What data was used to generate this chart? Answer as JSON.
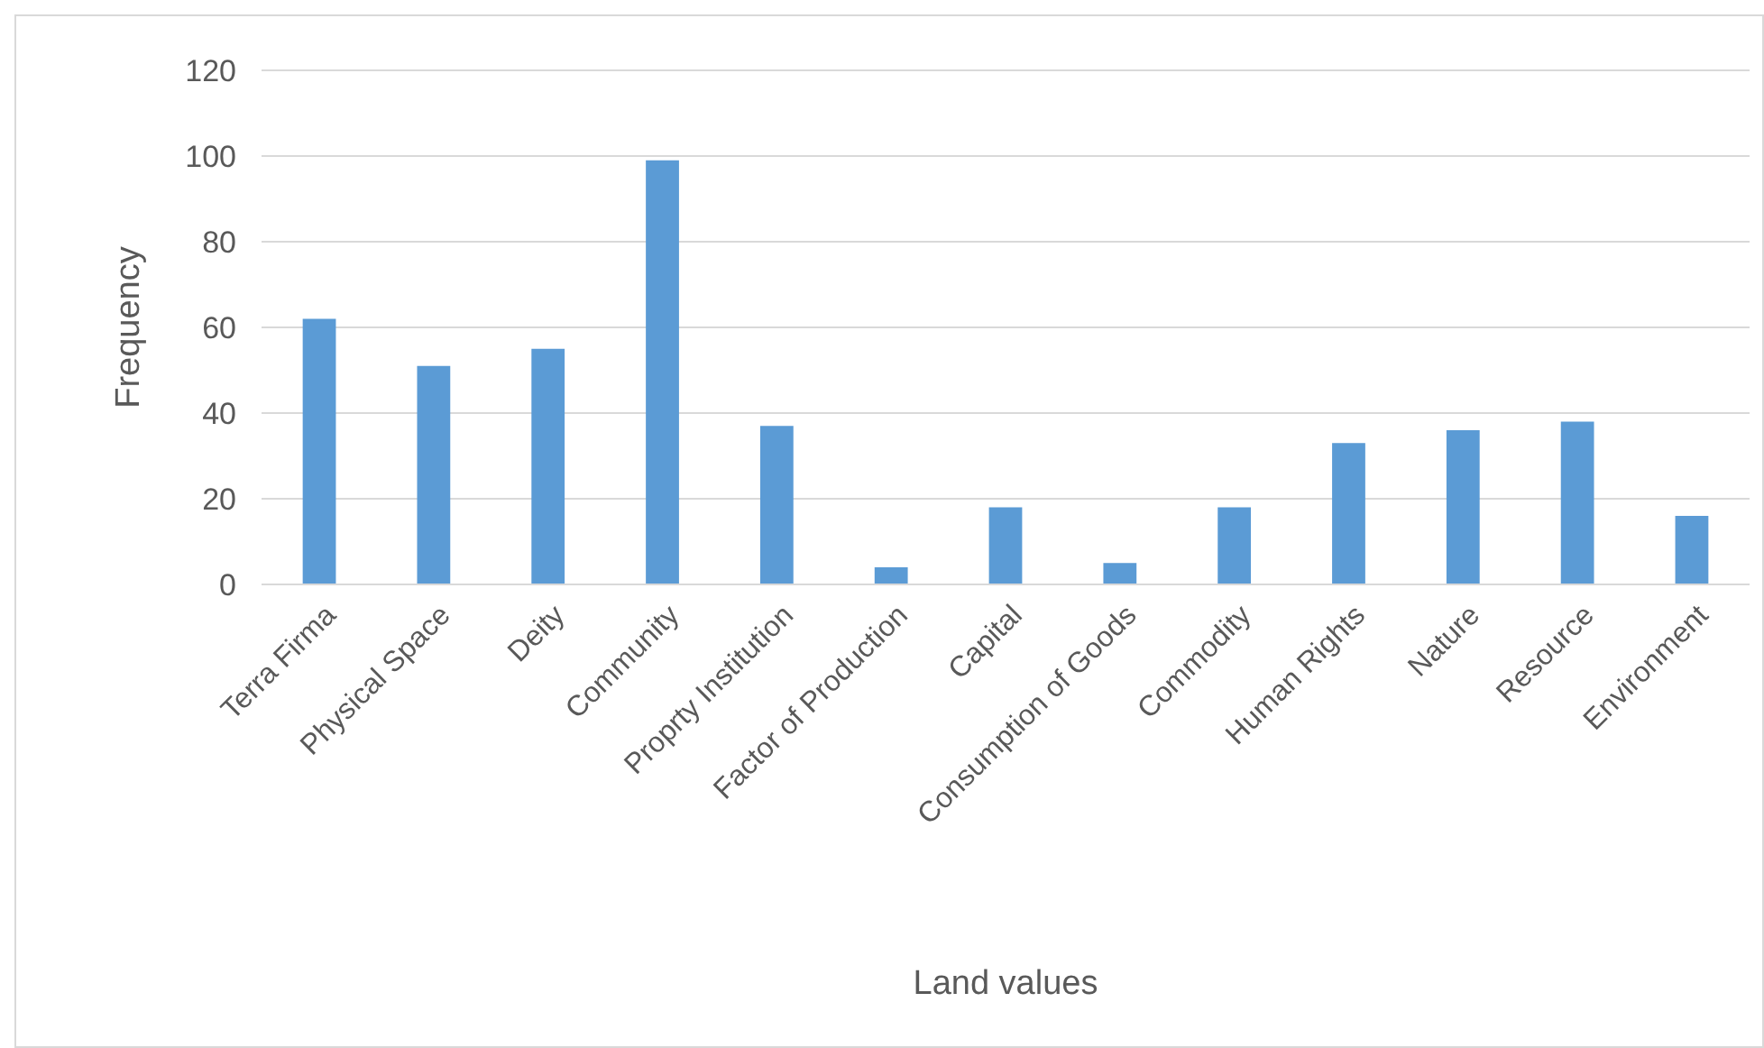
{
  "chart_data": {
    "type": "bar",
    "xlabel": "Land values",
    "ylabel": "Frequency",
    "categories": [
      "Terra Firma",
      "Physical Space",
      "Deity",
      "Community",
      "Proprty Institution",
      "Factor of Production",
      "Capital",
      "Consumption of Goods",
      "Commodity",
      "Human Rights",
      "Nature",
      "Resource",
      "Environment"
    ],
    "values": [
      62,
      51,
      55,
      99,
      37,
      4,
      18,
      5,
      18,
      33,
      36,
      38,
      16
    ],
    "color": "#5b9bd5",
    "ylim": [
      0,
      120
    ],
    "yticks": [
      0,
      20,
      40,
      60,
      80,
      100,
      120
    ],
    "grid": "y"
  }
}
